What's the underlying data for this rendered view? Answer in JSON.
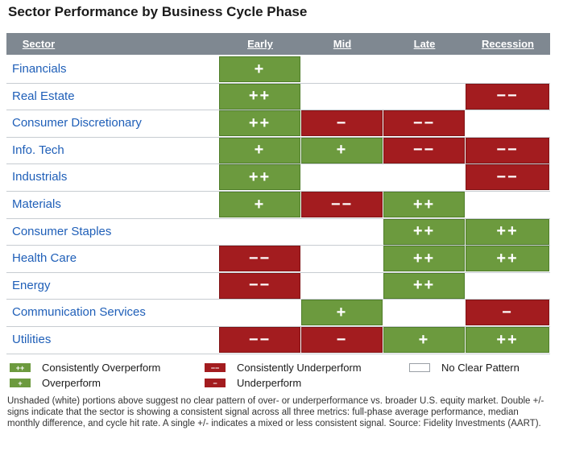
{
  "title": "Sector Performance by Business Cycle Phase",
  "chart_data": {
    "type": "table",
    "columns": [
      "Sector",
      "Early",
      "Mid",
      "Late",
      "Recession"
    ],
    "rows": [
      {
        "sector": "Financials",
        "signals": [
          "+",
          "",
          "",
          ""
        ]
      },
      {
        "sector": "Real Estate",
        "signals": [
          "++",
          "",
          "",
          "−−"
        ]
      },
      {
        "sector": "Consumer Discretionary",
        "signals": [
          "++",
          "−",
          "−−",
          ""
        ]
      },
      {
        "sector": "Info. Tech",
        "signals": [
          "+",
          "+",
          "−−",
          "−−"
        ]
      },
      {
        "sector": "Industrials",
        "signals": [
          "++",
          "",
          "",
          "−−"
        ]
      },
      {
        "sector": "Materials",
        "signals": [
          "+",
          "−−",
          "++",
          ""
        ]
      },
      {
        "sector": "Consumer Staples",
        "signals": [
          "",
          "",
          "++",
          "++"
        ]
      },
      {
        "sector": "Health Care",
        "signals": [
          "−−",
          "",
          "++",
          "++"
        ]
      },
      {
        "sector": "Energy",
        "signals": [
          "−−",
          "",
          "++",
          ""
        ]
      },
      {
        "sector": "Communication Services",
        "signals": [
          "",
          "+",
          "",
          "−"
        ]
      },
      {
        "sector": "Utilities",
        "signals": [
          "−−",
          "−",
          "+",
          "++"
        ]
      }
    ]
  },
  "legend": [
    {
      "symbol": "++",
      "label": "Consistently Overperform",
      "color": "#6c9a3e"
    },
    {
      "symbol": "+",
      "label": "Overperform",
      "color": "#6c9a3e"
    },
    {
      "symbol": "−−",
      "label": "Consistently Underperform",
      "color": "#a31c1f"
    },
    {
      "symbol": "−",
      "label": "Underperform",
      "color": "#a31c1f"
    },
    {
      "symbol": "",
      "label": "No Clear Pattern",
      "color": "#ffffff"
    }
  ],
  "footnote": "Unshaded (white) portions above suggest no clear pattern of over- or underperformance vs. broader U.S. equity market. Double +/- signs indicate that the sector is showing a consistent signal across all three metrics: full-phase average performance, median monthly difference, and cycle hit rate. A single +/- indicates a mixed or less consistent signal. Source: Fidelity Investments (AART)."
}
